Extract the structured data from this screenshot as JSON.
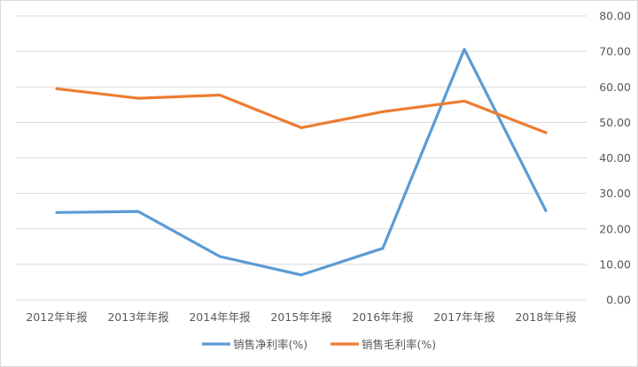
{
  "chart_data": {
    "type": "line",
    "title": "",
    "xlabel": "",
    "ylabel": "",
    "categories": [
      "2012年年报",
      "2013年年报",
      "2014年年报",
      "2015年年报",
      "2016年年报",
      "2017年年报",
      "2018年年报"
    ],
    "series": [
      {
        "name": "销售净利率(%)",
        "color": "#5b9bd5",
        "values": [
          24.6,
          24.9,
          12.2,
          7.0,
          14.5,
          70.6,
          25.1
        ]
      },
      {
        "name": "销售毛利率(%)",
        "color": "#ed7d31",
        "values": [
          59.5,
          56.8,
          57.7,
          48.5,
          53.0,
          56.0,
          47.1
        ]
      }
    ],
    "y_axis": {
      "position": "right",
      "ylim": [
        0,
        80
      ],
      "ticks": [
        "0.00",
        "10.00",
        "20.00",
        "30.00",
        "40.00",
        "50.00",
        "60.00",
        "70.00",
        "80.00"
      ]
    },
    "grid": true,
    "legend_position": "bottom"
  }
}
